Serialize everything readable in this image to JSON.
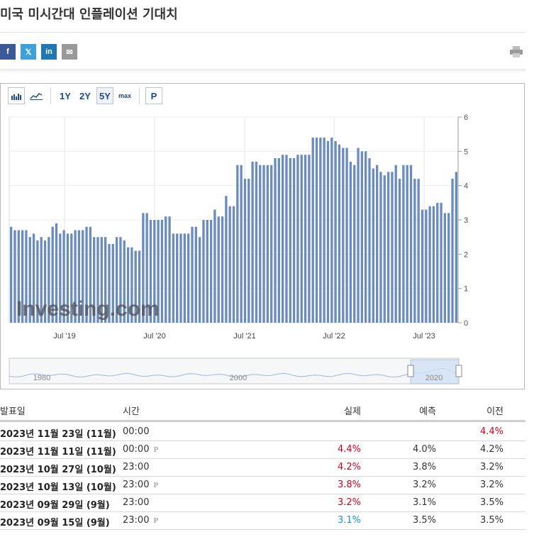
{
  "page": {
    "title": "미국 미시간대 인플레이션 기대치"
  },
  "share": {
    "facebook": {
      "label": "f",
      "color": "#3b5998"
    },
    "twitter": {
      "label": "𝕏",
      "color": "#3ea1dc"
    },
    "linkedin": {
      "label": "in",
      "color": "#1f77b4"
    },
    "email": {
      "label": "✉",
      "color": "#999999"
    }
  },
  "toolbar": {
    "bar_icon": "bar-chart-icon",
    "line_icon": "line-chart-icon",
    "ranges": [
      "1Y",
      "2Y",
      "5Y",
      "max"
    ],
    "active_range": "5Y",
    "p_label": "P"
  },
  "chart_data": {
    "type": "bar",
    "y_range": [
      0,
      6
    ],
    "y_ticks": [
      "0",
      "1",
      "2",
      "3",
      "4",
      "5",
      "6"
    ],
    "x_tick_labels": [
      "Jul '19",
      "Jul '20",
      "Jul '21",
      "Jul '22",
      "Jul '23"
    ],
    "values": [
      2.8,
      2.7,
      2.7,
      2.7,
      2.7,
      2.5,
      2.6,
      2.4,
      2.5,
      2.4,
      2.5,
      2.8,
      2.9,
      2.6,
      2.7,
      2.6,
      2.6,
      2.7,
      2.7,
      2.7,
      2.8,
      2.8,
      2.5,
      2.5,
      2.5,
      2.5,
      2.3,
      2.3,
      2.5,
      2.5,
      2.4,
      2.2,
      2.2,
      2.1,
      2.1,
      3.2,
      3.2,
      3.0,
      3.0,
      3.0,
      3.0,
      3.1,
      3.1,
      2.6,
      2.6,
      2.6,
      2.6,
      2.6,
      2.8,
      2.8,
      2.5,
      3.0,
      3.0,
      3.0,
      3.3,
      3.1,
      3.1,
      3.7,
      3.4,
      3.4,
      4.6,
      4.6,
      4.2,
      4.2,
      4.7,
      4.7,
      4.6,
      4.6,
      4.6,
      4.6,
      4.8,
      4.8,
      4.9,
      4.9,
      4.8,
      4.8,
      4.9,
      4.9,
      4.9,
      4.9,
      5.4,
      5.4,
      5.4,
      5.4,
      5.3,
      5.4,
      5.3,
      5.2,
      5.1,
      5.1,
      4.7,
      4.6,
      5.1,
      5.0,
      5.0,
      4.8,
      4.5,
      4.6,
      4.4,
      4.3,
      4.4,
      4.4,
      4.6,
      4.2,
      4.6,
      4.6,
      4.6,
      4.2,
      4.2,
      3.3,
      3.3,
      3.4,
      3.4,
      3.5,
      3.5,
      3.2,
      3.2,
      4.2,
      4.4
    ],
    "watermark": "Investing.com",
    "navigator_labels": [
      "1980",
      "2000",
      "2020"
    ],
    "bar_color": "#6a8bbd",
    "grid": true
  },
  "table": {
    "headers": {
      "date": "발표일",
      "time": "시간",
      "actual": "실제",
      "forecast": "예측",
      "previous": "이전"
    },
    "rows": [
      {
        "date": "2023년 11월 23일 (11월)",
        "time": "00:00",
        "preliminary": false,
        "actual": "",
        "actual_color": "",
        "forecast": "",
        "previous": "4.4%",
        "previous_color": "red"
      },
      {
        "date": "2023년 11월 11일 (11월)",
        "time": "00:00",
        "preliminary": true,
        "actual": "4.4%",
        "actual_color": "red",
        "forecast": "4.0%",
        "previous": "4.2%",
        "previous_color": ""
      },
      {
        "date": "2023년 10월 27일 (10월)",
        "time": "23:00",
        "preliminary": false,
        "actual": "4.2%",
        "actual_color": "red",
        "forecast": "3.8%",
        "previous": "3.2%",
        "previous_color": ""
      },
      {
        "date": "2023년 10월 13일 (10월)",
        "time": "23:00",
        "preliminary": true,
        "actual": "3.8%",
        "actual_color": "red",
        "forecast": "3.2%",
        "previous": "3.2%",
        "previous_color": ""
      },
      {
        "date": "2023년 09월 29일 (9월)",
        "time": "23:00",
        "preliminary": false,
        "actual": "3.2%",
        "actual_color": "red",
        "forecast": "3.1%",
        "previous": "3.5%",
        "previous_color": ""
      },
      {
        "date": "2023년 09월 15일 (9월)",
        "time": "23:00",
        "preliminary": true,
        "actual": "3.1%",
        "actual_color": "blue",
        "forecast": "3.5%",
        "previous": "3.5%",
        "previous_color": ""
      }
    ],
    "p_mark": "P"
  }
}
